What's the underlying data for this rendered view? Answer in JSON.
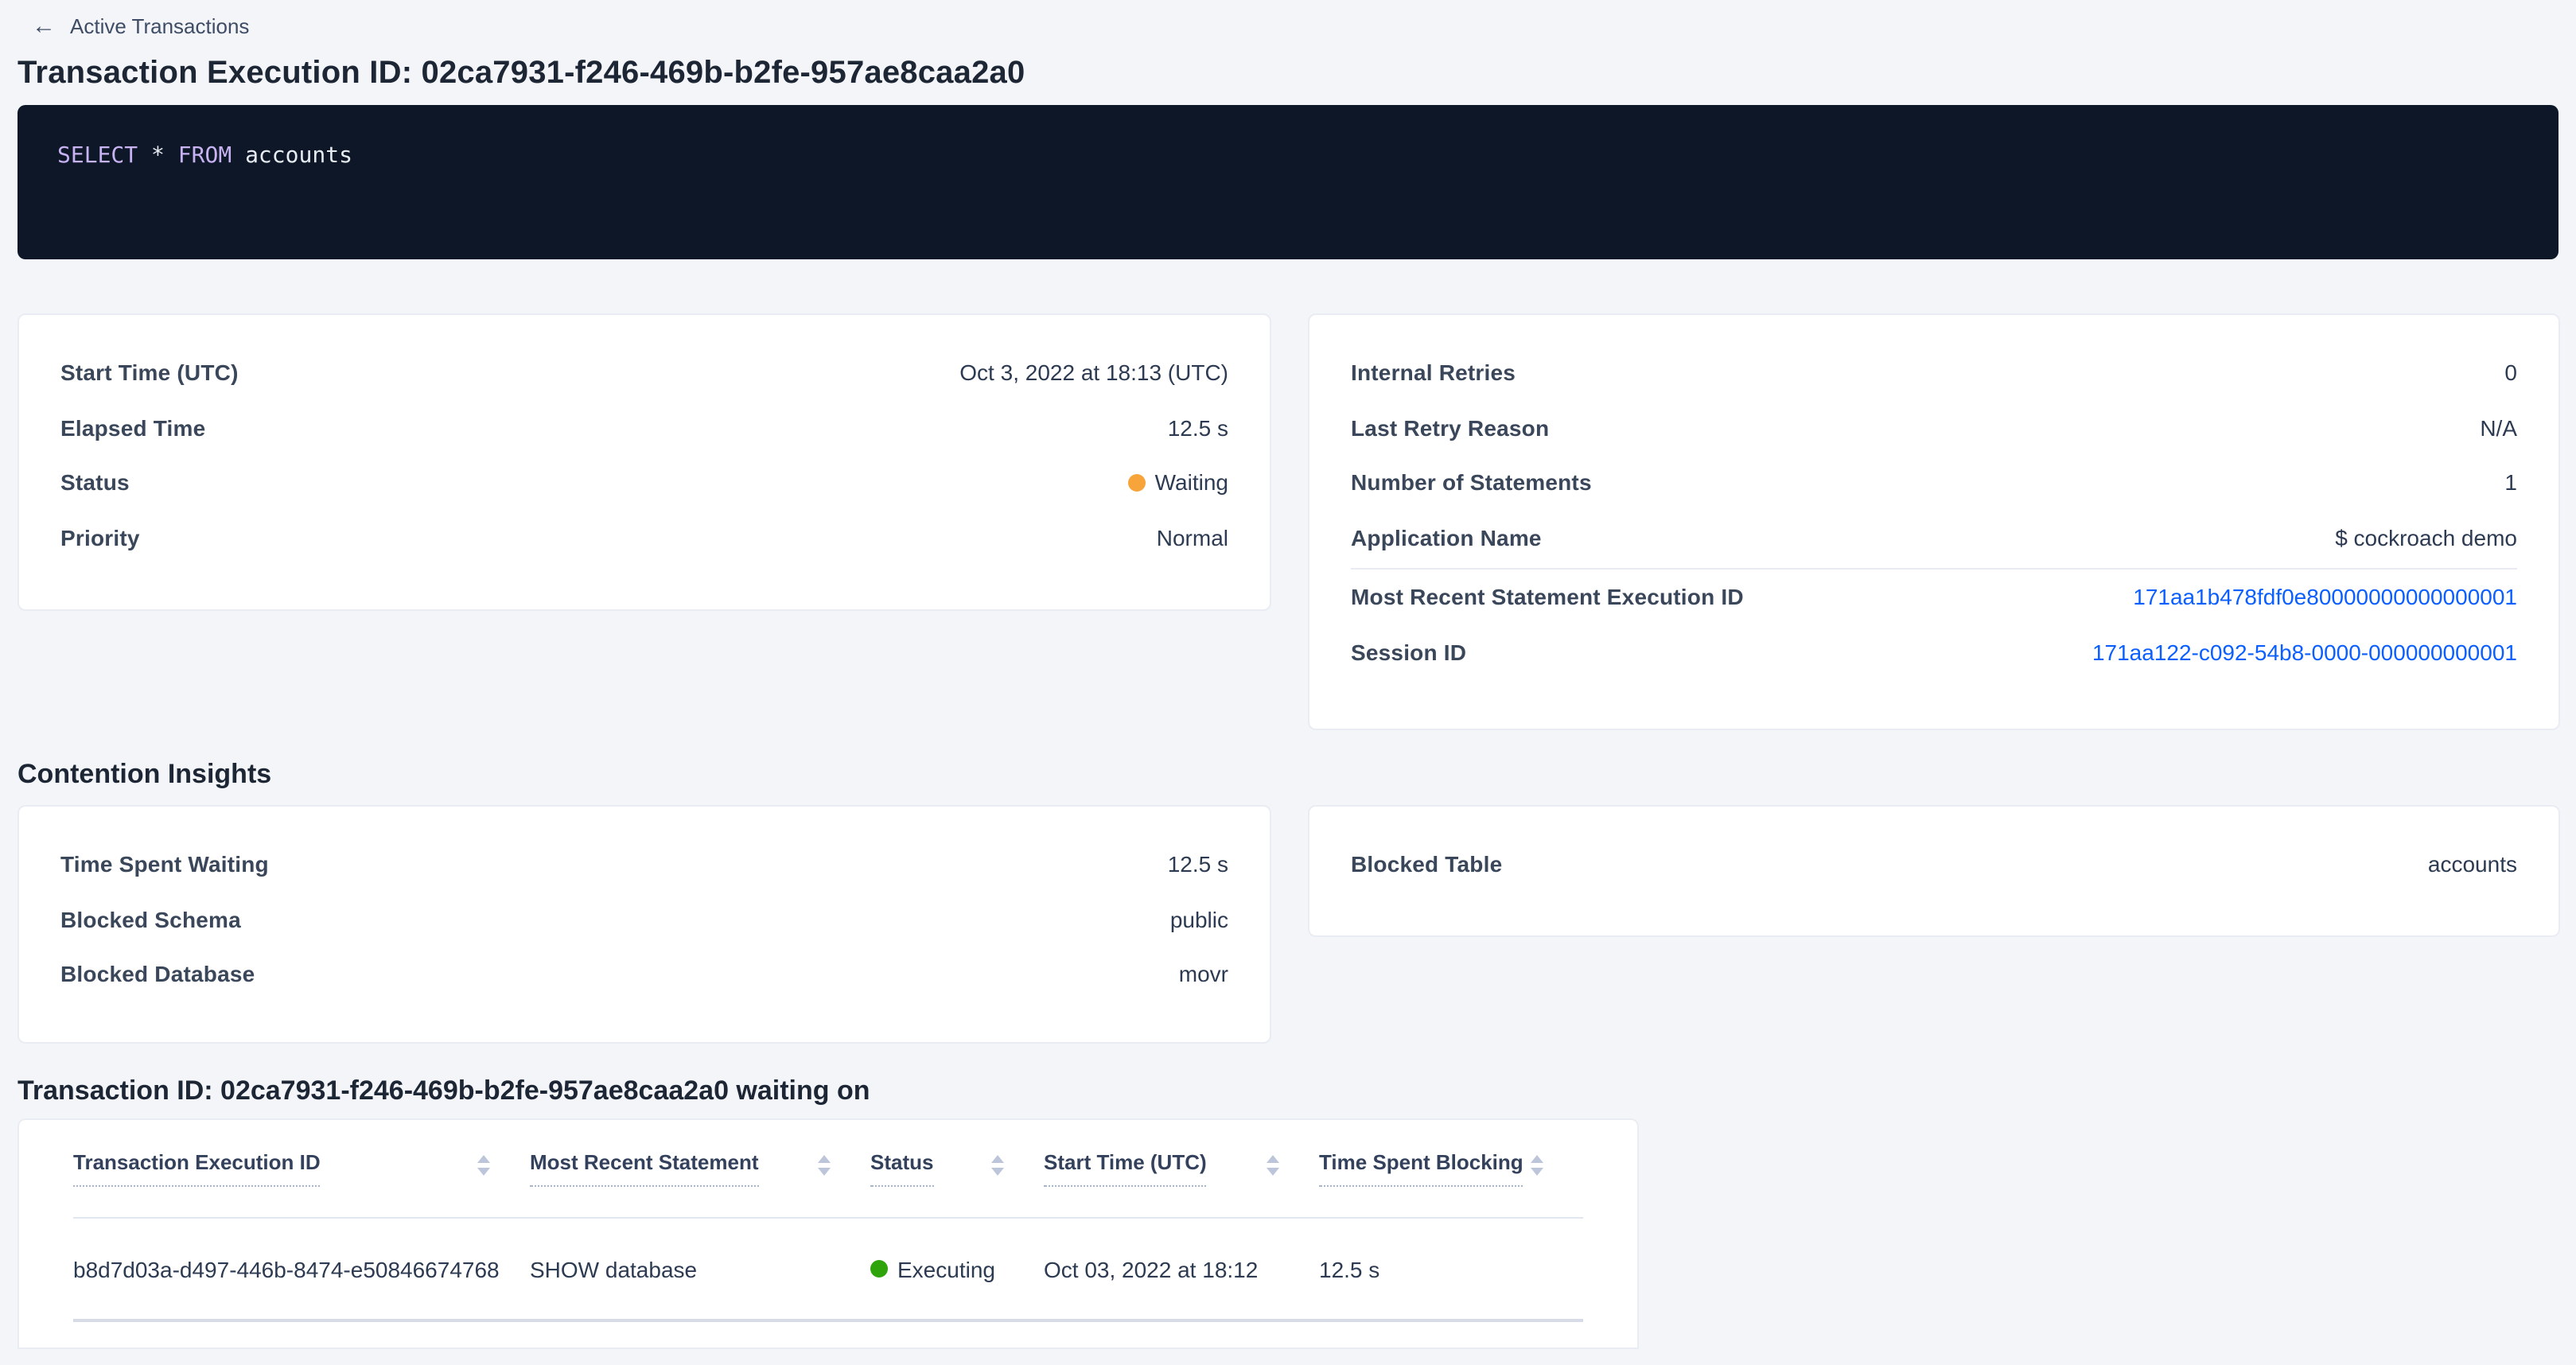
{
  "breadcrumb": {
    "back_label": "Active Transactions"
  },
  "page_title": "Transaction Execution ID: 02ca7931-f246-469b-b2fe-957ae8caa2a0",
  "sql": {
    "tokens": [
      {
        "text": "SELECT ",
        "type": "keyword"
      },
      {
        "text": "* ",
        "type": "plain"
      },
      {
        "text": "FROM ",
        "type": "keyword"
      },
      {
        "text": "accounts",
        "type": "plain"
      }
    ]
  },
  "summary_left": {
    "rows": [
      {
        "label": "Start Time (UTC)",
        "value": "Oct 3, 2022 at 18:13 (UTC)"
      },
      {
        "label": "Elapsed Time",
        "value": "12.5 s"
      },
      {
        "label": "Status",
        "value": "Waiting"
      },
      {
        "label": "Priority",
        "value": "Normal"
      }
    ]
  },
  "summary_right": {
    "rows": [
      {
        "label": "Internal Retries",
        "value": "0"
      },
      {
        "label": "Last Retry Reason",
        "value": "N/A"
      },
      {
        "label": "Number of Statements",
        "value": "1"
      },
      {
        "label": "Application Name",
        "value": "$ cockroach demo"
      }
    ],
    "links": [
      {
        "label": "Most Recent Statement Execution ID",
        "value": "171aa1b478fdf0e80000000000000001"
      },
      {
        "label": "Session ID",
        "value": "171aa122-c092-54b8-0000-000000000001"
      }
    ]
  },
  "contention": {
    "heading": "Contention Insights",
    "left_rows": [
      {
        "label": "Time Spent Waiting",
        "value": "12.5 s"
      },
      {
        "label": "Blocked Schema",
        "value": "public"
      },
      {
        "label": "Blocked Database",
        "value": "movr"
      }
    ],
    "right_rows": [
      {
        "label": "Blocked Table",
        "value": "accounts"
      }
    ]
  },
  "waiting_on": {
    "heading": "Transaction ID: 02ca7931-f246-469b-b2fe-957ae8caa2a0 waiting on",
    "columns": [
      "Transaction Execution ID",
      "Most Recent Statement",
      "Status",
      "Start Time (UTC)",
      "Time Spent Blocking"
    ],
    "rows": [
      {
        "transaction_execution_id": "b8d7d03a-d497-446b-8474-e50846674768",
        "most_recent_statement": "SHOW database",
        "status": "Executing",
        "start_time": "Oct 03, 2022 at 18:12",
        "time_spent_blocking": "12.5 s"
      }
    ]
  },
  "colors": {
    "link_blue": "#0b5fff",
    "status_waiting": "#f7a43b",
    "status_executing": "#2fa40a",
    "sql_keyword": "#c7b2f2",
    "sql_background": "#0d1727",
    "page_background": "#f4f5f9"
  }
}
